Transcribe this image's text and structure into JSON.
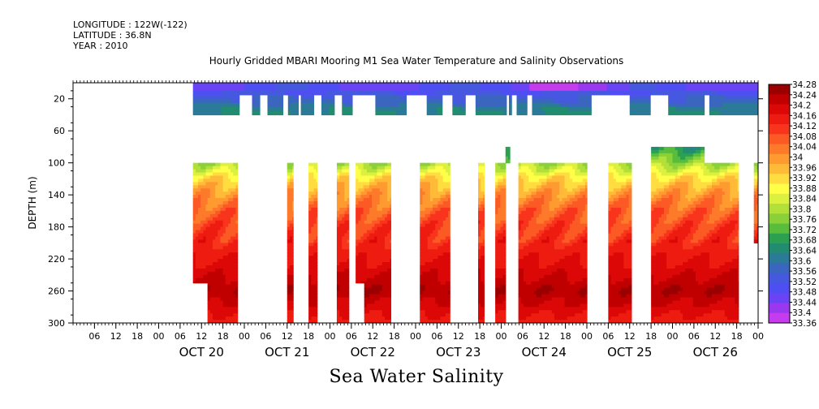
{
  "header": {
    "longitude": "LONGITUDE : 122W(-122)",
    "latitude": "LATITUDE : 36.8N",
    "year": "YEAR : 2010"
  },
  "caption": "Sea Water Salinity",
  "chart_data": {
    "type": "heatmap",
    "title": "Hourly Gridded MBARI Mooring M1 Sea Water Temperature and Salinity Observations",
    "xlabel": "",
    "ylabel": "DEPTH (m)",
    "ylim": [
      300,
      0
    ],
    "y_axis_inverted": true,
    "yticks": [
      20,
      60,
      100,
      140,
      180,
      220,
      260,
      300
    ],
    "x_start": "2010-10-19T00:00",
    "x_end": "2010-10-27T00:00",
    "hour_ticks": [
      "06",
      "12",
      "18",
      "00",
      "06",
      "12",
      "18",
      "00",
      "06",
      "12",
      "18",
      "00",
      "06",
      "12",
      "18",
      "00",
      "06",
      "12",
      "18",
      "00",
      "06",
      "12",
      "18",
      "00",
      "06",
      "12",
      "18",
      "00",
      "06",
      "12",
      "18",
      "00"
    ],
    "day_labels": [
      "OCT 20",
      "OCT 21",
      "OCT 22",
      "OCT 23",
      "OCT 24",
      "OCT 25",
      "OCT 26"
    ],
    "colorbar": {
      "levels": [
        34.28,
        34.24,
        34.2,
        34.16,
        34.12,
        34.08,
        34.04,
        34,
        33.96,
        33.92,
        33.88,
        33.84,
        33.8,
        33.76,
        33.72,
        33.68,
        33.64,
        33.6,
        33.56,
        33.52,
        33.48,
        33.44,
        33.4,
        33.36
      ],
      "colors": [
        "#9b0000",
        "#c00000",
        "#dc0808",
        "#ee1c10",
        "#f8341c",
        "#fb5a24",
        "#fd7a2a",
        "#fe9a30",
        "#ffbb38",
        "#ffdd40",
        "#ffff48",
        "#dcf040",
        "#b2e038",
        "#8ad038",
        "#58bc3c",
        "#2aa050",
        "#228c70",
        "#2a7a98",
        "#3a66c0",
        "#4658e0",
        "#4e4ef2",
        "#6a44f4",
        "#9a38f0",
        "#c43cee"
      ]
    },
    "surface_layer": {
      "top_band": {
        "depth_range": [
          0,
          10
        ],
        "value_range": [
          33.44,
          33.52
        ]
      },
      "lower_band": {
        "depth_range": [
          10,
          40
        ],
        "value_range": [
          33.52,
          33.66
        ]
      },
      "data_range_days": [
        1.4,
        9.0
      ]
    },
    "deep_profile": {
      "depths": [
        80,
        100,
        120,
        140,
        160,
        180,
        200,
        220,
        240,
        260,
        280,
        300
      ],
      "typical_values": [
        33.66,
        33.78,
        33.92,
        34.0,
        34.06,
        34.1,
        34.13,
        34.16,
        34.2,
        34.24,
        34.19,
        34.14
      ]
    }
  }
}
